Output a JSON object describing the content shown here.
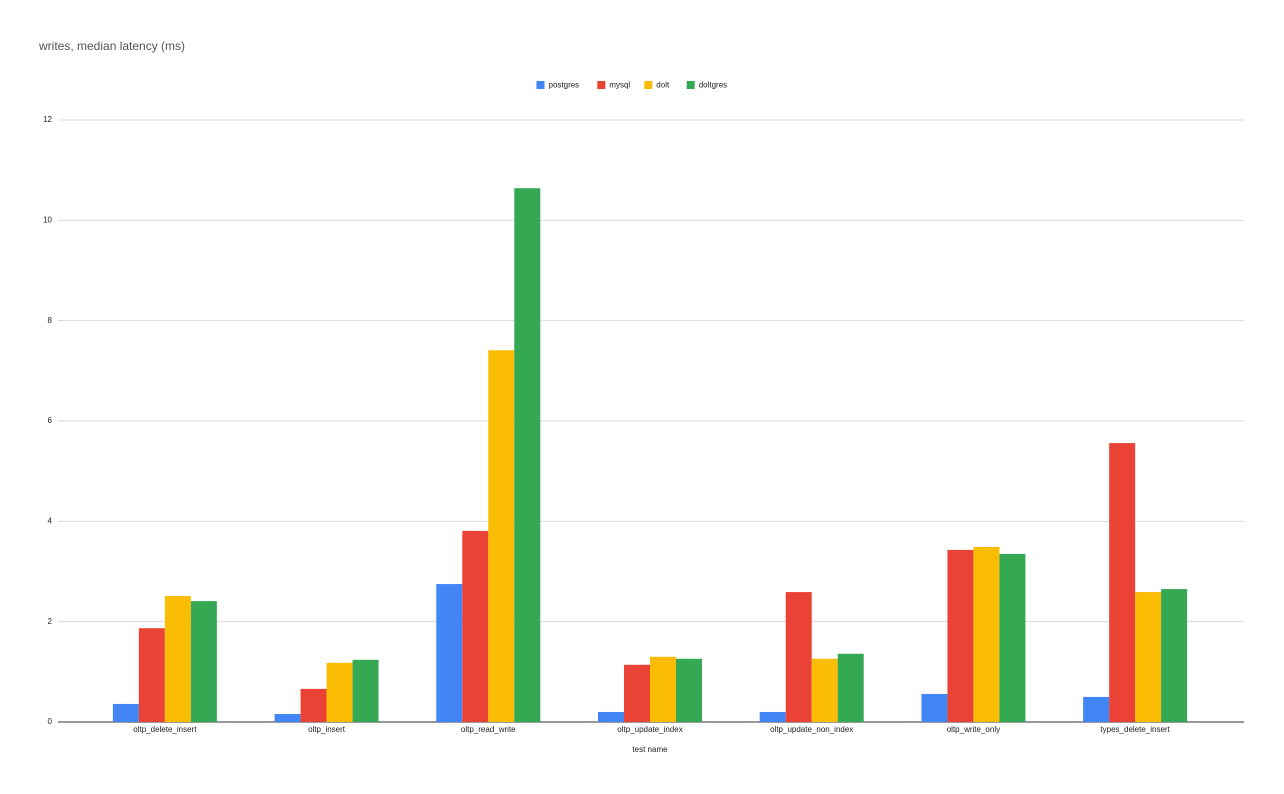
{
  "chart_data": {
    "type": "bar",
    "title": "writes, median latency (ms)",
    "x_label": "test name",
    "categories": [
      "oltp_delete_insert",
      "oltp_insert",
      "oltp_read_write",
      "oltp_update_index",
      "oltp_update_non_index",
      "oltp_write_only",
      "types_delete_insert"
    ],
    "series": [
      {
        "name": "postgres",
        "color": "#4285f4",
        "values": [
          0.36,
          0.16,
          2.75,
          0.2,
          0.2,
          0.56,
          0.5
        ]
      },
      {
        "name": "mysql",
        "color": "#ea4335",
        "values": [
          1.87,
          0.66,
          3.81,
          1.14,
          2.59,
          3.43,
          5.56
        ]
      },
      {
        "name": "dolt",
        "color": "#fbbc04",
        "values": [
          2.51,
          1.18,
          7.41,
          1.3,
          1.26,
          3.49,
          2.59
        ]
      },
      {
        "name": "doltgres",
        "color": "#34a853",
        "values": [
          2.41,
          1.24,
          10.64,
          1.26,
          1.36,
          3.35,
          2.65
        ]
      }
    ],
    "ylim": [
      0,
      12
    ],
    "yticks": [
      0,
      2,
      4,
      6,
      8,
      10,
      12
    ],
    "grid": true,
    "legend": "top"
  }
}
